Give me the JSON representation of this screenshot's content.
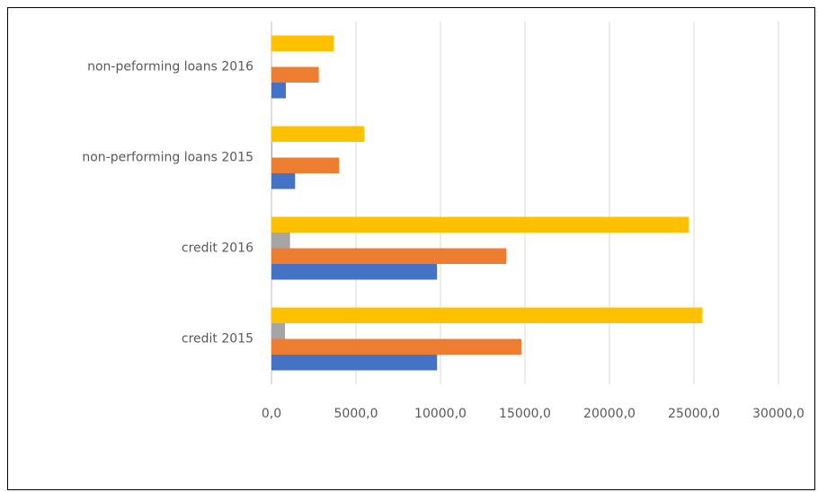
{
  "chart_data": {
    "type": "hbar",
    "categories": [
      "credit 2015",
      "credit 2016",
      "non-performing loans 2015",
      "non-peforming loans 2016"
    ],
    "series": [
      {
        "color": "#4472c4",
        "values": [
          9800,
          9800,
          1400,
          850
        ]
      },
      {
        "color": "#ed7d31",
        "values": [
          14800,
          13900,
          4000,
          2800
        ]
      },
      {
        "color": "#a5a5a5",
        "values": [
          800,
          1100,
          50,
          0
        ]
      },
      {
        "color": "#ffc000",
        "values": [
          25500,
          24700,
          5500,
          3700
        ]
      }
    ],
    "xlim": [
      0,
      30000
    ],
    "xticks": [
      {
        "value": 0,
        "label": "0,0"
      },
      {
        "value": 5000,
        "label": "5000,0"
      },
      {
        "value": 10000,
        "label": "10000,0"
      },
      {
        "value": 15000,
        "label": "15000,0"
      },
      {
        "value": 20000,
        "label": "20000,0"
      },
      {
        "value": 25000,
        "label": "25000,0"
      },
      {
        "value": 30000,
        "label": "30000,0"
      }
    ],
    "grid": true
  }
}
